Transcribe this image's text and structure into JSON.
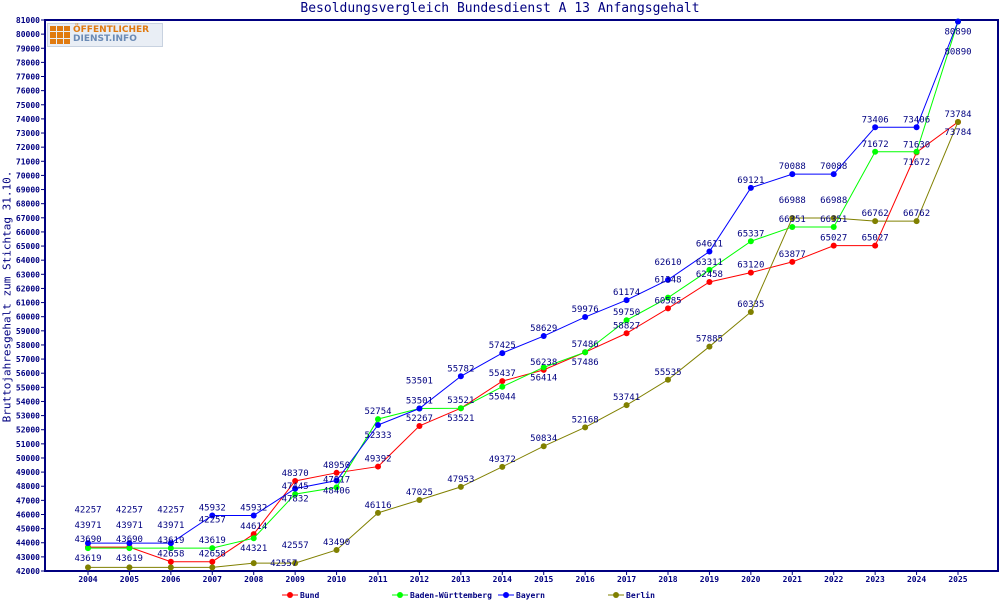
{
  "chart_data": {
    "type": "line",
    "title": "Besoldungsvergleich Bundesdienst A 13 Anfangsgehalt",
    "xlabel": "",
    "ylabel": "Bruttojahresgehalt zum Stichtag 31.10.",
    "ylim": [
      42000,
      81000
    ],
    "ytick_step": 1000,
    "grid": false,
    "legend_position": "bottom",
    "x": [
      "2004",
      "2005",
      "2006",
      "2007",
      "2008",
      "2009",
      "2010",
      "2011",
      "2012",
      "2013",
      "2014",
      "2015",
      "2016",
      "2017",
      "2018",
      "2019",
      "2020",
      "2021",
      "2022",
      "2023",
      "2024",
      "2025"
    ],
    "series": [
      {
        "name": "Bund",
        "color": "#ff0000",
        "values": [
          43690,
          43690,
          42658,
          42658,
          44614,
          48370,
          48950,
          49392,
          52267,
          53521,
          55437,
          56238,
          57486,
          58827,
          60585,
          62458,
          63120,
          63877,
          65027,
          65027,
          71630,
          73784
        ]
      },
      {
        "name": "Baden-Württemberg",
        "color": "#00ff00",
        "values": [
          43619,
          43619,
          43619,
          43619,
          44321,
          47445,
          47917,
          52754,
          53501,
          53521,
          55044,
          56414,
          57486,
          59750,
          61348,
          63311,
          65337,
          66351,
          66351,
          71672,
          71672,
          80890
        ]
      },
      {
        "name": "Bayern",
        "color": "#0000ff",
        "values": [
          43971,
          43971,
          43971,
          45932,
          45932,
          47832,
          48406,
          52333,
          53501,
          55782,
          57425,
          58629,
          59976,
          61174,
          62610,
          64611,
          69121,
          70088,
          70088,
          73406,
          73406,
          80890
        ]
      },
      {
        "name": "Berlin",
        "color": "#808000",
        "values": [
          42257,
          42257,
          42257,
          42257,
          42557,
          42557,
          43490,
          46116,
          47025,
          47953,
          49372,
          50834,
          52168,
          53741,
          55535,
          57885,
          60335,
          66988,
          66988,
          66762,
          66762,
          73784
        ]
      }
    ]
  },
  "logo": {
    "line1": "ÖFFENTLICHER",
    "line2": "DIENST.INFO"
  },
  "colors": {
    "axis": "#000080",
    "label": "#000080"
  }
}
